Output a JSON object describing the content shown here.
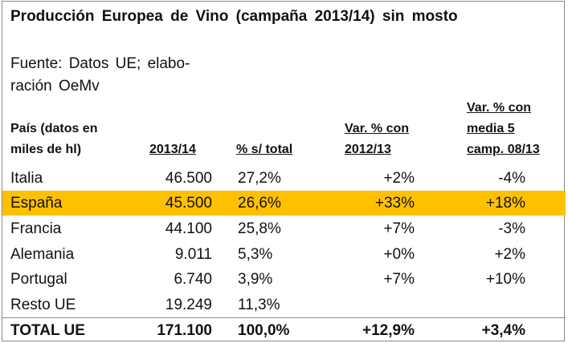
{
  "title": "Producción Europea de Vino (campaña 2013/14) sin mosto",
  "source": "Fuente: Datos UE; elabo- ración OeMv",
  "headers": {
    "country_line1": "País (datos en",
    "country_line2": "miles de hl)",
    "production": "2013/14",
    "share": "% s/ total",
    "var1_line1": "Var. % con",
    "var1_line2": "2012/13",
    "var2_line1": "Var. % con",
    "var2_line2": "media 5",
    "var2_line3": "camp. 08/13"
  },
  "rows": [
    {
      "country": "Italia",
      "production": "46.500",
      "share": "27,2%",
      "var_prev": "+2%",
      "var_avg": "-4%"
    },
    {
      "country": "España",
      "production": "45.500",
      "share": "26,6%",
      "var_prev": "+33%",
      "var_avg": "+18%"
    },
    {
      "country": "Francia",
      "production": "44.100",
      "share": "25,8%",
      "var_prev": "+7%",
      "var_avg": "-3%"
    },
    {
      "country": "Alemania",
      "production": "9.011",
      "share": "5,3%",
      "var_prev": "+0%",
      "var_avg": "+2%"
    },
    {
      "country": "Portugal",
      "production": "6.740",
      "share": "3,9%",
      "var_prev": "+7%",
      "var_avg": "+10%"
    },
    {
      "country": "Resto UE",
      "production": "19.249",
      "share": "11,3%",
      "var_prev": "",
      "var_avg": ""
    }
  ],
  "total": {
    "country": "TOTAL UE",
    "production": "171.100",
    "share": "100,0%",
    "var_prev": "+12,9%",
    "var_avg": "+3,4%"
  },
  "colors": {
    "highlight": "#ffc000",
    "border": "#8a8a8a"
  }
}
